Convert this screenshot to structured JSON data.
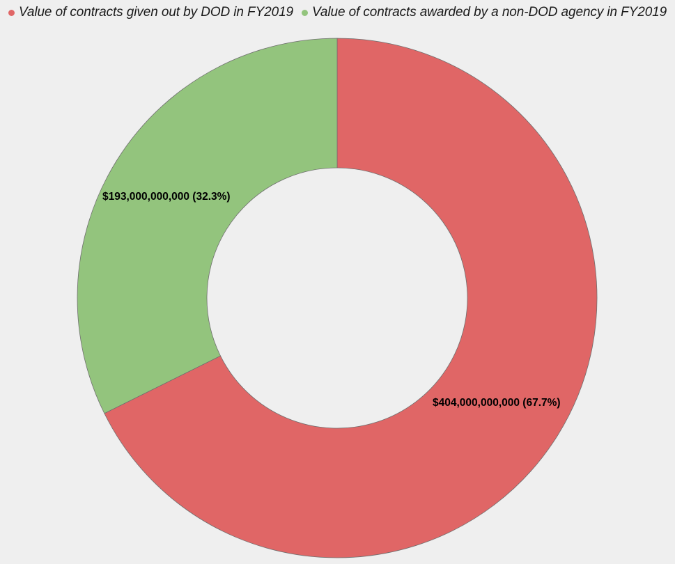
{
  "chart_data": {
    "type": "pie",
    "variant": "donut",
    "legend_position": "top",
    "categories": [
      "Value of contracts given out by DOD in FY2019",
      "Value of contracts awarded by a non-DOD agency in FY2019"
    ],
    "values": [
      404000000000,
      193000000000
    ],
    "percentages": [
      67.7,
      32.3
    ],
    "data_labels": [
      "$404,000,000,000 (67.7%)",
      "$193,000,000,000 (32.3%)"
    ],
    "colors": [
      "#e06666",
      "#93c47d"
    ]
  }
}
